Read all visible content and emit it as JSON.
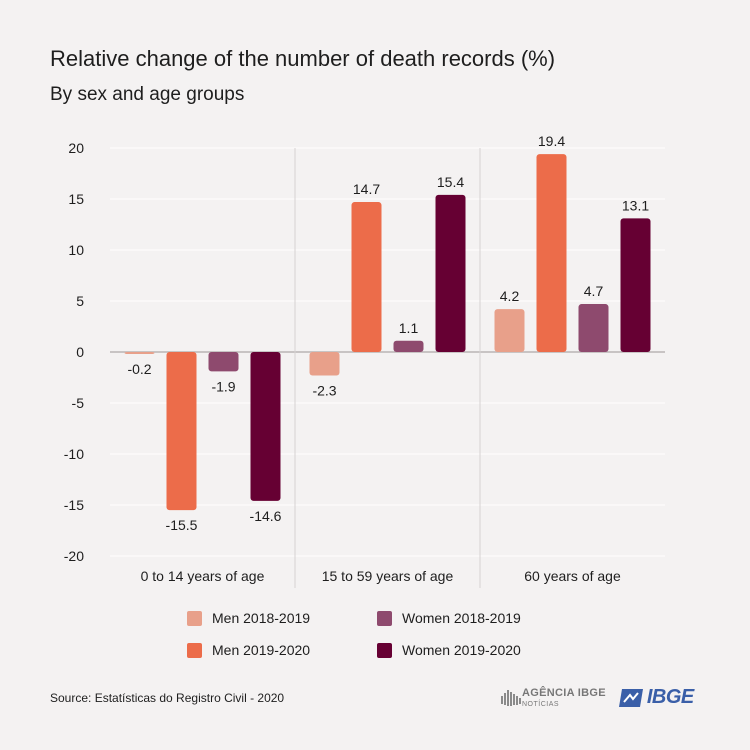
{
  "header": {
    "title": "Relative change of the number of death records (%)",
    "subtitle": "By sex and age groups"
  },
  "chart_data": {
    "type": "bar",
    "categories": [
      "0 to 14 years of age",
      "15 to 59 years of age",
      "60 years of age"
    ],
    "series": [
      {
        "name": "Men 2018-2019",
        "color": "#e8a08a",
        "values": [
          -0.2,
          -2.3,
          4.2
        ]
      },
      {
        "name": "Men 2019-2020",
        "color": "#ec6c4a",
        "values": [
          -15.5,
          14.7,
          19.4
        ]
      },
      {
        "name": "Women 2018-2019",
        "color": "#8e4a6e",
        "values": [
          -1.9,
          1.1,
          4.7
        ]
      },
      {
        "name": "Women 2019-2020",
        "color": "#660033",
        "values": [
          -14.6,
          15.4,
          13.1
        ]
      }
    ],
    "ylim": [
      -20,
      20
    ],
    "yticks": [
      20,
      15,
      10,
      5,
      0,
      -5,
      -10,
      -15,
      -20
    ],
    "grid": true,
    "legend_position": "bottom"
  },
  "footer": {
    "source": "Source: Estatísticas do Registro Civil - 2020",
    "agencia_label": "AGÊNCIA IBGE",
    "agencia_sub": "NOTÍCIAS",
    "ibge_label": "IBGE"
  },
  "colors": {
    "background": "#f4f2f2",
    "grid": "#ffffff",
    "axis": "#c8c4c4",
    "ibge_blue": "#3a5fa8"
  }
}
